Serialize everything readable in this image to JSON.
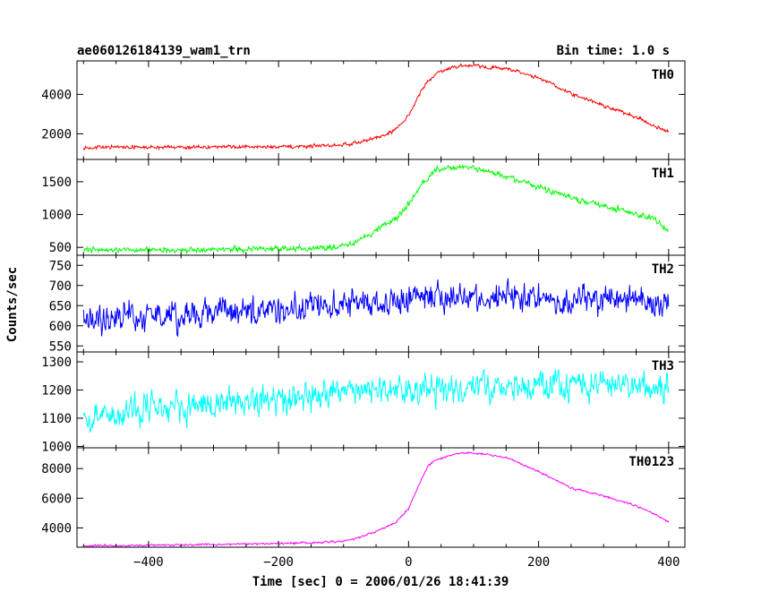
{
  "header": {
    "title": "ae060126184139_wam1_trn",
    "bin_time": "Bin time: 1.0 s"
  },
  "chart_data": {
    "type": "line",
    "title": "ae060126184139_wam1_trn",
    "subtitle": "Bin time: 1.0 s",
    "xlabel": "Time [sec] 0 = 2006/01/26 18:41:39",
    "ylabel": "Counts/sec",
    "xlim": [
      -510,
      425
    ],
    "x_ticks": [
      -400,
      -200,
      0,
      200,
      400
    ],
    "x_tick_labels": [
      "−400",
      "−200",
      "0",
      "200",
      "400"
    ],
    "grid": false,
    "legend": "none",
    "panels": [
      {
        "name": "TH0",
        "color": "#ff0000",
        "ylim": [
          700,
          5700
        ],
        "yticks": [
          2000,
          4000
        ],
        "ytick_labels": [
          "2000",
          "4000"
        ],
        "noise": 60,
        "x": [
          -500,
          -400,
          -300,
          -200,
          -150,
          -100,
          -80,
          -60,
          -40,
          -20,
          0,
          10,
          20,
          30,
          40,
          60,
          80,
          100,
          150,
          200,
          250,
          300,
          350,
          380,
          400
        ],
        "y": [
          1320,
          1320,
          1330,
          1340,
          1380,
          1450,
          1550,
          1700,
          1900,
          2200,
          2950,
          3600,
          4200,
          4700,
          5000,
          5300,
          5450,
          5450,
          5300,
          4850,
          4050,
          3450,
          2850,
          2350,
          2100
        ]
      },
      {
        "name": "TH1",
        "color": "#00ff00",
        "ylim": [
          380,
          1840
        ],
        "yticks": [
          500,
          1000,
          1500
        ],
        "ytick_labels": [
          "500",
          "1000",
          "1500"
        ],
        "noise": 30,
        "x": [
          -500,
          -400,
          -300,
          -200,
          -150,
          -120,
          -100,
          -80,
          -60,
          -40,
          -20,
          0,
          20,
          40,
          60,
          80,
          100,
          150,
          200,
          250,
          300,
          350,
          380,
          400
        ],
        "y": [
          455,
          460,
          470,
          480,
          490,
          500,
          520,
          580,
          700,
          820,
          930,
          1150,
          1450,
          1660,
          1720,
          1720,
          1700,
          1590,
          1420,
          1260,
          1120,
          1020,
          910,
          740
        ]
      },
      {
        "name": "TH2",
        "color": "#0000ff",
        "ylim": [
          535,
          775
        ],
        "yticks": [
          550,
          600,
          650,
          700,
          750
        ],
        "ytick_labels": [
          "550",
          "600",
          "650",
          "700",
          "750"
        ],
        "noise": 24,
        "x": [
          -500,
          -400,
          -300,
          -200,
          -100,
          0,
          100,
          200,
          300,
          400
        ],
        "y": [
          608,
          622,
          632,
          640,
          655,
          667,
          672,
          670,
          665,
          662
        ]
      },
      {
        "name": "TH3",
        "color": "#00ffff",
        "ylim": [
          995,
          1335
        ],
        "yticks": [
          1000,
          1100,
          1200,
          1300
        ],
        "ytick_labels": [
          "1000",
          "1100",
          "1200",
          "1300"
        ],
        "noise": 36,
        "x": [
          -500,
          -400,
          -300,
          -200,
          -100,
          0,
          100,
          200,
          300,
          400
        ],
        "y": [
          1100,
          1128,
          1150,
          1168,
          1185,
          1200,
          1210,
          1215,
          1215,
          1212
        ]
      },
      {
        "name": "TH0123",
        "color": "#ff00ff",
        "ylim": [
          2700,
          9400
        ],
        "yticks": [
          4000,
          6000,
          8000
        ],
        "ytick_labels": [
          "4000",
          "6000",
          "8000"
        ],
        "noise": 45,
        "x": [
          -500,
          -400,
          -300,
          -200,
          -150,
          -100,
          -80,
          -60,
          -40,
          -20,
          0,
          10,
          20,
          30,
          40,
          60,
          80,
          100,
          150,
          200,
          250,
          300,
          350,
          380,
          400
        ],
        "y": [
          2800,
          2820,
          2880,
          2960,
          3000,
          3100,
          3300,
          3600,
          3950,
          4350,
          5300,
          6300,
          7300,
          8200,
          8500,
          8850,
          9050,
          9050,
          8750,
          7800,
          6700,
          6150,
          5500,
          4900,
          4400
        ]
      }
    ]
  }
}
